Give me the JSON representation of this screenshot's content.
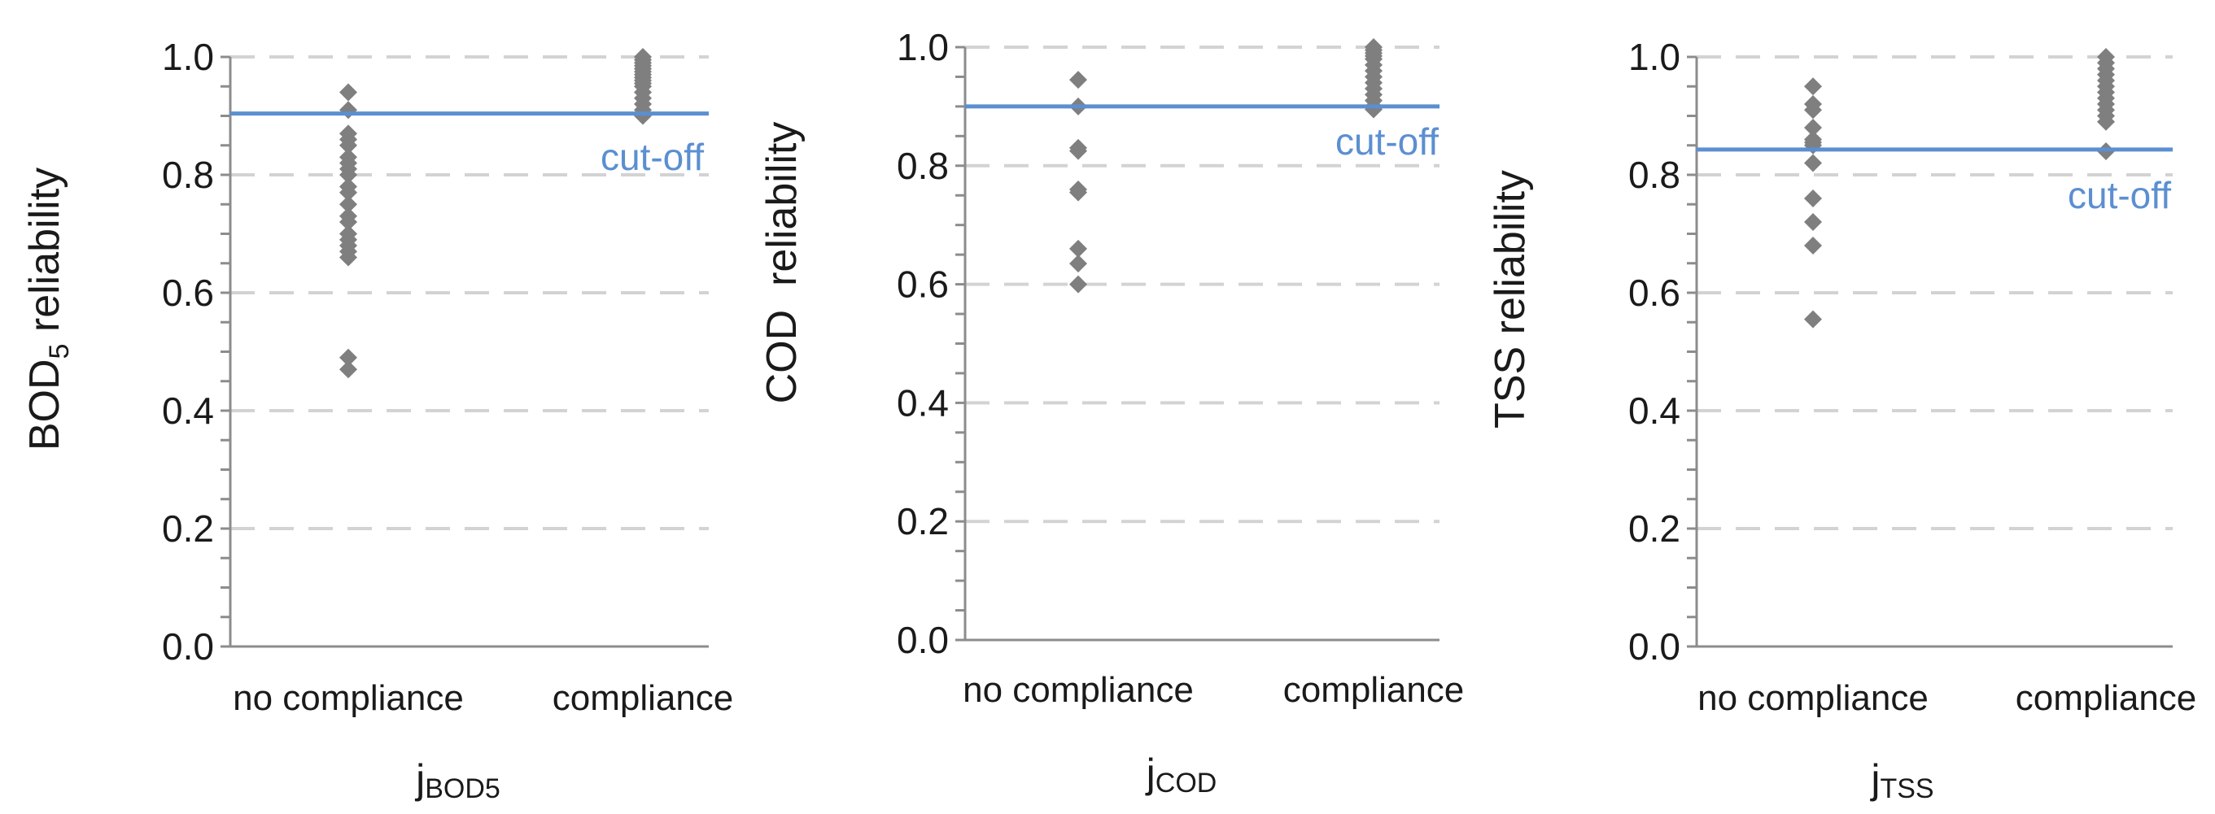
{
  "colors": {
    "marker": "#7f7f7f",
    "cutoff": "#5b8fd1",
    "grid": "#d3d3d3",
    "axis": "#8c8c8c",
    "text": "#1a1a1a"
  },
  "chart_data": [
    {
      "type": "scatter",
      "id": "bod5",
      "categories": [
        "no compliance",
        "compliance"
      ],
      "series": [
        {
          "name": "no compliance",
          "values": [
            0.94,
            0.91,
            0.87,
            0.86,
            0.85,
            0.83,
            0.82,
            0.81,
            0.8,
            0.78,
            0.77,
            0.75,
            0.73,
            0.72,
            0.7,
            0.69,
            0.68,
            0.67,
            0.66,
            0.49,
            0.47
          ]
        },
        {
          "name": "compliance",
          "values": [
            1.0,
            0.995,
            0.99,
            0.985,
            0.98,
            0.975,
            0.97,
            0.965,
            0.96,
            0.955,
            0.95,
            0.94,
            0.93,
            0.92,
            0.91,
            0.9
          ]
        }
      ],
      "cutoff": 0.904,
      "cutoff_label": "cut-off",
      "ylabel_main": "BOD",
      "ylabel_sub": "5",
      "ylabel_rest": " reliability",
      "xlabel_main": "j",
      "xlabel_sub": "BOD5",
      "ylim": [
        0,
        1
      ],
      "yticks": [
        "0.0",
        "0.2",
        "0.4",
        "0.6",
        "0.8",
        "1.0"
      ]
    },
    {
      "type": "scatter",
      "id": "cod",
      "categories": [
        "no compliance",
        "compliance"
      ],
      "series": [
        {
          "name": "no compliance",
          "values": [
            0.945,
            0.9,
            0.83,
            0.825,
            0.76,
            0.755,
            0.66,
            0.635,
            0.6
          ]
        },
        {
          "name": "compliance",
          "values": [
            1.0,
            0.995,
            0.99,
            0.985,
            0.98,
            0.97,
            0.96,
            0.95,
            0.94,
            0.93,
            0.92,
            0.91,
            0.9,
            0.895
          ]
        }
      ],
      "cutoff": 0.9,
      "cutoff_label": "cut-off",
      "ylabel_main": "COD",
      "ylabel_sub": "",
      "ylabel_rest": "  reliability",
      "xlabel_main": "j",
      "xlabel_sub": "COD",
      "ylim": [
        0,
        1
      ],
      "yticks": [
        "0.0",
        "0.2",
        "0.4",
        "0.6",
        "0.8",
        "1.0"
      ]
    },
    {
      "type": "scatter",
      "id": "tss",
      "categories": [
        "no compliance",
        "compliance"
      ],
      "series": [
        {
          "name": "no compliance",
          "values": [
            0.95,
            0.92,
            0.91,
            0.88,
            0.86,
            0.855,
            0.85,
            0.82,
            0.76,
            0.72,
            0.68,
            0.555
          ]
        },
        {
          "name": "compliance",
          "values": [
            1.0,
            0.99,
            0.98,
            0.97,
            0.96,
            0.95,
            0.94,
            0.93,
            0.92,
            0.91,
            0.9,
            0.89,
            0.84
          ]
        }
      ],
      "cutoff": 0.843,
      "cutoff_label": "cut-off",
      "ylabel_main": "TSS reliability",
      "ylabel_sub": "",
      "ylabel_rest": "",
      "xlabel_main": "j",
      "xlabel_sub": "TSS",
      "ylim": [
        0,
        1
      ],
      "yticks": [
        "0.0",
        "0.2",
        "0.4",
        "0.6",
        "0.8",
        "1.0"
      ]
    }
  ]
}
